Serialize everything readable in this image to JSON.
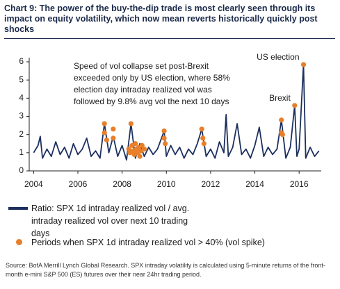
{
  "chart_data": {
    "type": "line",
    "title": "Chart 9: The power of the buy-the-dip trade is most clearly seen through its impact on equity volatility, which now mean reverts historically quickly post shocks",
    "annotation_lines": [
      "Speed of vol collapse set post-Brexit",
      "exceeded only by US election, where 58%",
      "election day intraday realized vol was",
      "followed by 9.8% avg vol the next 10 days"
    ],
    "labels": [
      {
        "text": "US election",
        "x": 2016.2,
        "y": 5.85
      },
      {
        "text": "Brexit",
        "x": 2015.8,
        "y": 3.6
      }
    ],
    "xlim": [
      2003.8,
      2017.0
    ],
    "xticks": [
      2004,
      2006,
      2008,
      2010,
      2012,
      2014,
      2016
    ],
    "ylim": [
      0,
      6
    ],
    "yticks": [
      0,
      1,
      2,
      3,
      4,
      5,
      6
    ],
    "series": [
      {
        "name": "Ratio: SPX 1d intraday realized vol / avg. intraday realized vol over next 10 trading days",
        "kind": "line",
        "color": "#1c2f5e",
        "x": [
          2004.0,
          2004.2,
          2004.3,
          2004.4,
          2004.6,
          2004.8,
          2005.0,
          2005.2,
          2005.4,
          2005.6,
          2005.8,
          2006.0,
          2006.2,
          2006.4,
          2006.6,
          2006.8,
          2007.0,
          2007.2,
          2007.4,
          2007.6,
          2007.8,
          2008.0,
          2008.2,
          2008.4,
          2008.6,
          2008.8,
          2009.0,
          2009.2,
          2009.4,
          2009.6,
          2009.9,
          2010.0,
          2010.2,
          2010.4,
          2010.6,
          2010.8,
          2011.0,
          2011.2,
          2011.4,
          2011.6,
          2011.8,
          2012.0,
          2012.2,
          2012.4,
          2012.6,
          2012.7,
          2012.8,
          2013.0,
          2013.2,
          2013.4,
          2013.6,
          2013.8,
          2014.0,
          2014.2,
          2014.4,
          2014.6,
          2014.8,
          2015.0,
          2015.2,
          2015.4,
          2015.6,
          2015.8,
          2015.9,
          2016.0,
          2016.2,
          2016.3,
          2016.5,
          2016.7,
          2016.9
        ],
        "values": [
          1.0,
          1.4,
          1.9,
          0.7,
          1.2,
          0.8,
          1.6,
          0.9,
          1.3,
          0.7,
          1.5,
          0.9,
          1.2,
          1.8,
          0.8,
          1.1,
          0.7,
          2.6,
          1.0,
          1.9,
          0.8,
          1.4,
          0.6,
          2.6,
          0.7,
          1.5,
          0.8,
          1.3,
          0.9,
          1.2,
          2.2,
          0.8,
          1.4,
          0.9,
          1.3,
          0.7,
          1.2,
          0.9,
          1.5,
          2.3,
          0.8,
          1.2,
          0.7,
          1.6,
          1.0,
          3.1,
          0.8,
          1.3,
          2.6,
          0.9,
          1.2,
          0.7,
          1.4,
          2.4,
          0.8,
          1.3,
          0.9,
          1.2,
          2.8,
          0.7,
          1.3,
          3.6,
          0.8,
          1.2,
          5.85,
          0.7,
          1.3,
          0.8,
          1.1
        ]
      },
      {
        "name": "Periods when SPX 1d intraday realized vol > 40% (vol spike)",
        "kind": "scatter",
        "color": "#e87f2a",
        "x": [
          2007.2,
          2007.2,
          2007.3,
          2007.6,
          2007.6,
          2008.3,
          2008.35,
          2008.4,
          2008.45,
          2008.5,
          2008.55,
          2008.6,
          2008.65,
          2008.7,
          2008.75,
          2008.8,
          2008.85,
          2008.9,
          2009.0,
          2009.9,
          2009.9,
          2009.95,
          2011.6,
          2011.65,
          2011.7,
          2015.2,
          2015.2,
          2015.25,
          2015.8,
          2016.2
        ],
        "values": [
          2.6,
          2.1,
          1.7,
          2.3,
          1.8,
          1.2,
          1.0,
          2.6,
          1.4,
          1.1,
          0.9,
          1.5,
          1.2,
          1.0,
          1.3,
          0.8,
          1.1,
          1.4,
          1.2,
          2.2,
          1.8,
          1.5,
          2.3,
          1.8,
          1.5,
          2.8,
          2.1,
          2.0,
          3.6,
          5.85
        ]
      }
    ],
    "source": "Source: BofA Merrill Lynch Global Research.  SPX intraday volatility is calculated using 5-minute returns of the front-month e-mini S&P 500 (ES) futures over their near 24hr trading period."
  }
}
